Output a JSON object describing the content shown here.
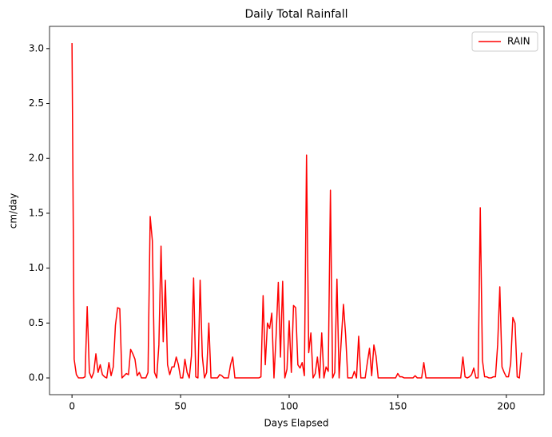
{
  "chart_data": {
    "type": "line",
    "title": "Daily Total Rainfall",
    "x_label": "Days Elapsed",
    "y_label": "cm/day",
    "x": [
      0,
      1,
      2,
      3,
      4,
      5,
      6,
      7,
      8,
      9,
      10,
      11,
      12,
      13,
      14,
      15,
      16,
      17,
      18,
      19,
      20,
      21,
      22,
      23,
      24,
      25,
      26,
      27,
      28,
      29,
      30,
      31,
      32,
      33,
      34,
      35,
      36,
      37,
      38,
      39,
      40,
      41,
      42,
      43,
      44,
      45,
      46,
      47,
      48,
      49,
      50,
      51,
      52,
      53,
      54,
      55,
      56,
      57,
      58,
      59,
      60,
      61,
      62,
      63,
      64,
      65,
      66,
      67,
      68,
      69,
      70,
      71,
      72,
      73,
      74,
      75,
      76,
      77,
      78,
      79,
      80,
      81,
      82,
      83,
      84,
      85,
      86,
      87,
      88,
      89,
      90,
      91,
      92,
      93,
      94,
      95,
      96,
      97,
      98,
      99,
      100,
      101,
      102,
      103,
      104,
      105,
      106,
      107,
      108,
      109,
      110,
      111,
      112,
      113,
      114,
      115,
      116,
      117,
      118,
      119,
      120,
      121,
      122,
      123,
      124,
      125,
      126,
      127,
      128,
      129,
      130,
      131,
      132,
      133,
      134,
      135,
      136,
      137,
      138,
      139,
      140,
      141,
      142,
      143,
      144,
      145,
      146,
      147,
      148,
      149,
      150,
      151,
      152,
      153,
      154,
      155,
      156,
      157,
      158,
      159,
      160,
      161,
      162,
      163,
      164,
      165,
      166,
      167,
      168,
      169,
      170,
      171,
      172,
      173,
      174,
      175,
      176,
      177,
      178,
      179,
      180,
      181,
      182,
      183,
      184,
      185,
      186,
      187,
      188,
      189,
      190,
      191,
      192,
      193,
      194,
      195,
      196,
      197,
      198,
      199,
      200,
      201,
      202,
      203,
      204,
      205,
      206,
      207
    ],
    "series": [
      {
        "name": "RAIN",
        "color": "#ff0000",
        "values": [
          3.05,
          0.17,
          0.03,
          0,
          0,
          0,
          0.01,
          0.65,
          0.05,
          0,
          0.05,
          0.22,
          0.05,
          0.12,
          0.03,
          0.01,
          0,
          0.14,
          0.02,
          0.1,
          0.48,
          0.64,
          0.63,
          0,
          0.02,
          0.04,
          0.03,
          0.26,
          0.22,
          0.17,
          0.02,
          0.05,
          0,
          0,
          0,
          0.05,
          1.47,
          1.25,
          0.05,
          0,
          0.3,
          1.2,
          0.33,
          0.89,
          0.12,
          0.03,
          0.1,
          0.1,
          0.19,
          0.12,
          0,
          0,
          0.17,
          0.05,
          0,
          0.2,
          0.91,
          0.01,
          0,
          0.89,
          0.2,
          0,
          0.05,
          0.5,
          0,
          0,
          0,
          0,
          0.03,
          0.02,
          0,
          0,
          0,
          0.12,
          0.19,
          0,
          0,
          0,
          0,
          0,
          0,
          0,
          0,
          0,
          0,
          0,
          0,
          0.01,
          0.75,
          0.12,
          0.5,
          0.45,
          0.59,
          0,
          0.39,
          0.87,
          0.19,
          0.88,
          0,
          0.08,
          0.52,
          0.05,
          0.66,
          0.64,
          0.12,
          0.09,
          0.14,
          0.02,
          2.03,
          0.23,
          0.41,
          0,
          0.04,
          0.19,
          0,
          0.41,
          0,
          0.1,
          0.06,
          1.71,
          0,
          0.05,
          0.9,
          0,
          0.35,
          0.67,
          0.39,
          0,
          0,
          0,
          0.06,
          0,
          0.38,
          0,
          0,
          0,
          0.14,
          0.27,
          0.02,
          0.3,
          0.2,
          0,
          0,
          0,
          0,
          0,
          0,
          0,
          0,
          0,
          0.04,
          0.01,
          0.01,
          0,
          0,
          0,
          0,
          0,
          0.02,
          0,
          0,
          0,
          0.14,
          0,
          0,
          0,
          0,
          0,
          0,
          0,
          0,
          0,
          0,
          0,
          0,
          0,
          0,
          0,
          0,
          0,
          0.19,
          0.01,
          0,
          0.01,
          0.03,
          0.09,
          0,
          0,
          1.55,
          0.16,
          0.01,
          0.01,
          0,
          0,
          0.01,
          0.01,
          0.3,
          0.83,
          0.1,
          0.05,
          0.01,
          0.01,
          0.13,
          0.55,
          0.5,
          0.01,
          0,
          0.23
        ]
      }
    ],
    "xlim": [
      -10.35,
      217.35
    ],
    "xticks": [
      0,
      50,
      100,
      150,
      200
    ],
    "ylim": [
      -0.1525,
      3.2025
    ],
    "yticks": [
      {
        "value": 0,
        "label": "0.0"
      },
      {
        "value": 0.5,
        "label": "0.5"
      },
      {
        "value": 1,
        "label": "1.0"
      },
      {
        "value": 1.5,
        "label": "1.5"
      },
      {
        "value": 2,
        "label": "2.0"
      },
      {
        "value": 2.5,
        "label": "2.5"
      },
      {
        "value": 3,
        "label": "3.0"
      }
    ],
    "grid": false,
    "legend": "upper-right"
  }
}
